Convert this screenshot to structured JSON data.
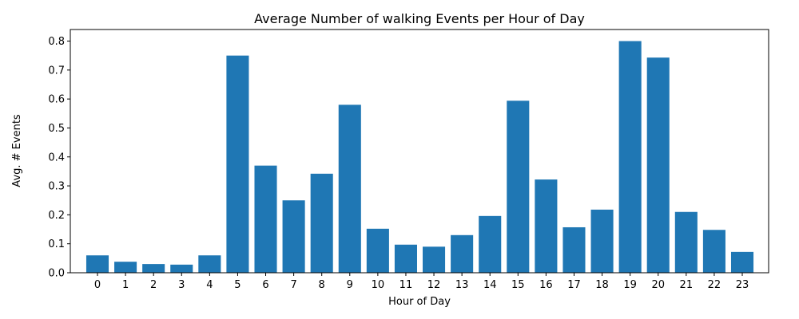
{
  "chart_data": {
    "type": "bar",
    "title": "Average Number of walking Events per Hour of Day",
    "xlabel": "Hour of Day",
    "ylabel": "Avg. # Events",
    "categories": [
      "0",
      "1",
      "2",
      "3",
      "4",
      "5",
      "6",
      "7",
      "8",
      "9",
      "10",
      "11",
      "12",
      "13",
      "14",
      "15",
      "16",
      "17",
      "18",
      "19",
      "20",
      "21",
      "22",
      "23"
    ],
    "values": [
      0.06,
      0.038,
      0.03,
      0.028,
      0.06,
      0.75,
      0.37,
      0.25,
      0.342,
      0.58,
      0.152,
      0.097,
      0.09,
      0.13,
      0.196,
      0.594,
      0.322,
      0.157,
      0.218,
      0.8,
      0.743,
      0.21,
      0.148,
      0.072
    ],
    "ylim": [
      0,
      0.84
    ],
    "yticks": [
      0.0,
      0.1,
      0.2,
      0.3,
      0.4,
      0.5,
      0.6,
      0.7,
      0.8
    ],
    "ytick_labels": [
      "0.0",
      "0.1",
      "0.2",
      "0.3",
      "0.4",
      "0.5",
      "0.6",
      "0.7",
      "0.8"
    ],
    "bar_color": "#1f77b4",
    "grid": false,
    "legend": "none"
  }
}
